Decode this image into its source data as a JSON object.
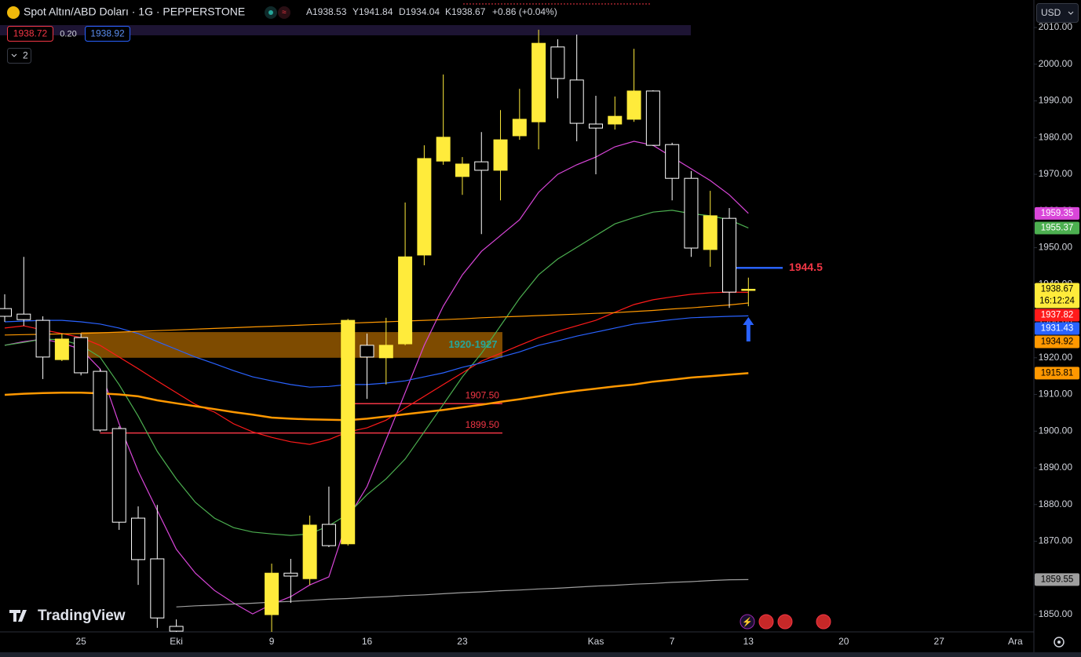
{
  "header": {
    "symbol": "Spot Altın/ABD Doları · 1G · PEPPERSTONE",
    "ohlc": [
      "A1938.53",
      "Y1941.84",
      "D1934.04",
      "K1938.67"
    ],
    "change": "+0.86 (+0.04%)",
    "bid": "1938.72",
    "spread": "0.20",
    "ask": "1938.92",
    "indicators_count": "2",
    "currency": "USD",
    "logo": "TradingView"
  },
  "chart_data": {
    "type": "candlestick",
    "categories": [
      null,
      null,
      null,
      null,
      "25",
      null,
      null,
      null,
      null,
      "Eki",
      null,
      null,
      null,
      null,
      "9",
      null,
      null,
      null,
      null,
      "16",
      null,
      null,
      null,
      null,
      "23",
      null,
      null,
      null,
      null,
      null,
      null,
      "Kas",
      null,
      null,
      null,
      "7",
      null,
      null,
      null,
      "13",
      null,
      null,
      null,
      null,
      "20",
      null,
      null,
      null,
      null,
      "27",
      null,
      null,
      null,
      "Ara"
    ],
    "open": [
      1933.4,
      1931.9,
      1930.2,
      1919.5,
      1925.5,
      1916.3,
      1900.7,
      1876.3,
      1865.2,
      1846.8,
      null,
      null,
      null,
      null,
      1850.0,
      1861.3,
      1859.8,
      1874.6,
      1869.3,
      1923.4,
      1920.0,
      1923.8,
      1948.0,
      1973.6,
      1969.4,
      1973.4,
      1971.1,
      1980.5,
      1984.3,
      2004.7,
      1995.7,
      1983.7,
      1983.7,
      1985.0,
      1992.7,
      1978.1,
      1968.9,
      1949.5,
      1958.0,
      1938.53,
      null,
      null,
      null,
      null,
      null,
      null,
      null,
      null,
      null,
      null,
      null,
      null,
      null,
      null
    ],
    "high": [
      1937.3,
      1947.5,
      1931.3,
      1926.6,
      1926.6,
      1917.0,
      1901.3,
      1879.5,
      1879.9,
      1848.7,
      null,
      null,
      null,
      null,
      1863.9,
      1865.2,
      1877.0,
      1884.9,
      1930.6,
      1926.6,
      1930.9,
      1962.3,
      1977.9,
      1997.2,
      1974.7,
      1981.5,
      1987.5,
      1993.3,
      2009.4,
      2006.8,
      2008.1,
      1991.4,
      1991.2,
      2004.2,
      1992.9,
      1978.6,
      1970.9,
      1965.5,
      1960.8,
      1941.84,
      null,
      null,
      null,
      null,
      null,
      null,
      null,
      null,
      null,
      null,
      null,
      null,
      null,
      null
    ],
    "low": [
      1929.8,
      1928.7,
      1914.2,
      1919.1,
      1915.2,
      1899.8,
      1873.1,
      1858.1,
      1846.4,
      1845.3,
      null,
      null,
      null,
      null,
      1845.3,
      1853.2,
      1858.1,
      1868.4,
      1868.8,
      1908.8,
      1912.7,
      1923.4,
      1945.2,
      1972.6,
      1964.4,
      1953.7,
      1962.9,
      1979.4,
      1976.8,
      1990.7,
      1979.0,
      1970.0,
      1982.2,
      1984.3,
      1977.7,
      1962.9,
      1947.5,
      1944.8,
      1933.6,
      1934.04,
      null,
      null,
      null,
      null,
      null,
      null,
      null,
      null,
      null,
      null,
      null,
      null,
      null,
      null
    ],
    "close": [
      1931.3,
      1930.4,
      1920.2,
      1925.1,
      1915.9,
      1900.3,
      1875.2,
      1865.0,
      1849.1,
      1845.5,
      null,
      null,
      null,
      null,
      1861.3,
      1860.5,
      1874.4,
      1868.8,
      1930.2,
      1920.2,
      1923.4,
      1947.5,
      1974.3,
      1980.1,
      1972.8,
      1971.1,
      1979.4,
      1985.0,
      2005.7,
      1996.1,
      1983.9,
      1982.6,
      1985.8,
      1992.7,
      1977.9,
      1968.9,
      1949.9,
      1958.7,
      1937.9,
      1938.67,
      null,
      null,
      null,
      null,
      null,
      null,
      null,
      null,
      null,
      null,
      null,
      null,
      null,
      null
    ],
    "colors": {
      "up": "#ffeb3b",
      "down": "#000000",
      "down_border": "#ffffff"
    },
    "countdown": "16:12:24",
    "series": [
      {
        "color": "#d946d9",
        "width": 1.2,
        "values": [
          1923.4,
          1924.4,
          1925.1,
          1924.0,
          1922.3,
          1917.0,
          1902.0,
          1889.1,
          1878.4,
          1867.8,
          1861.3,
          1856.6,
          1853.2,
          1850.2,
          1852.8,
          1854.9,
          1858.1,
          1860.3,
          1876.3,
          1884.9,
          1897.7,
          1910.5,
          1923.4,
          1934.1,
          1942.6,
          1949.0,
          1953.3,
          1957.6,
          1965.1,
          1970.0,
          1972.6,
          1974.7,
          1977.5,
          1979.0,
          1977.9,
          1974.7,
          1971.5,
          1968.3,
          1964.4,
          1959.35,
          null,
          null,
          null,
          null,
          null,
          null,
          null,
          null,
          null,
          null,
          null,
          null,
          null,
          null
        ]
      },
      {
        "color": "#4caf50",
        "width": 1.2,
        "values": [
          1923.4,
          1924.2,
          1925.1,
          1924.9,
          1923.4,
          1920.2,
          1912.7,
          1904.1,
          1894.5,
          1887.0,
          1880.6,
          1876.3,
          1873.7,
          1872.5,
          1872.0,
          1871.6,
          1872.0,
          1874.2,
          1877.4,
          1882.7,
          1887.0,
          1892.4,
          1899.8,
          1907.3,
          1914.8,
          1921.2,
          1928.7,
          1936.2,
          1942.6,
          1946.9,
          1950.1,
          1953.3,
          1956.5,
          1958.2,
          1959.7,
          1960.2,
          1959.3,
          1958.7,
          1957.6,
          1955.37,
          null,
          null,
          null,
          null,
          null,
          null,
          null,
          null,
          null,
          null,
          null,
          null,
          null,
          null
        ]
      },
      {
        "color": "#ff1a1a",
        "width": 1.2,
        "values": [
          1928.1,
          1928.7,
          1927.6,
          1926.6,
          1925.5,
          1923.4,
          1920.2,
          1917.0,
          1913.7,
          1910.5,
          1907.3,
          1905.2,
          1902.0,
          1899.8,
          1898.3,
          1897.1,
          1896.4,
          1897.7,
          1899.8,
          1900.9,
          1903.0,
          1906.3,
          1909.5,
          1912.7,
          1915.9,
          1919.1,
          1921.2,
          1923.4,
          1925.5,
          1927.2,
          1928.7,
          1930.2,
          1932.4,
          1934.5,
          1935.8,
          1936.6,
          1937.3,
          1937.7,
          1937.9,
          1937.82,
          null,
          null,
          null,
          null,
          null,
          null,
          null,
          null,
          null,
          null,
          null,
          null,
          null,
          null
        ]
      },
      {
        "color": "#2962ff",
        "width": 1.2,
        "values": [
          1929.8,
          1930.0,
          1930.2,
          1930.2,
          1929.8,
          1929.2,
          1928.1,
          1926.6,
          1924.4,
          1922.3,
          1920.2,
          1918.4,
          1916.5,
          1914.8,
          1913.7,
          1912.7,
          1912.0,
          1912.2,
          1912.7,
          1912.7,
          1913.1,
          1913.7,
          1914.8,
          1915.9,
          1917.4,
          1918.6,
          1920.2,
          1921.6,
          1923.4,
          1924.6,
          1925.9,
          1927.0,
          1928.1,
          1929.2,
          1929.8,
          1930.4,
          1930.9,
          1931.1,
          1931.3,
          1931.43,
          null,
          null,
          null,
          null,
          null,
          null,
          null,
          null,
          null,
          null,
          null,
          null,
          null,
          null
        ]
      },
      {
        "color": "#ff9800",
        "width": 1.2,
        "values": [
          1926.2,
          1926.3,
          1926.4,
          1926.5,
          1926.6,
          1926.8,
          1927.0,
          1927.2,
          1927.4,
          1927.6,
          1927.8,
          1928.0,
          1928.2,
          1928.4,
          1928.6,
          1928.8,
          1929.0,
          1929.2,
          1929.4,
          1929.6,
          1929.8,
          1930.0,
          1930.2,
          1930.4,
          1930.6,
          1930.9,
          1931.1,
          1931.3,
          1931.5,
          1931.7,
          1931.9,
          1932.1,
          1932.3,
          1932.6,
          1932.9,
          1933.3,
          1933.6,
          1934.0,
          1934.4,
          1934.92,
          null,
          null,
          null,
          null,
          null,
          null,
          null,
          null,
          null,
          null,
          null,
          null,
          null,
          null
        ]
      },
      {
        "color": "#ff9800",
        "width": 2.5,
        "values": [
          1909.9,
          1910.2,
          1910.4,
          1910.5,
          1910.5,
          1910.3,
          1910.0,
          1909.5,
          1908.4,
          1907.6,
          1906.8,
          1906.0,
          1905.2,
          1904.5,
          1903.7,
          1903.4,
          1903.2,
          1903.1,
          1903.0,
          1903.4,
          1904.0,
          1904.6,
          1905.2,
          1905.8,
          1906.5,
          1907.2,
          1908.0,
          1908.7,
          1909.5,
          1910.3,
          1911.0,
          1911.6,
          1912.2,
          1912.7,
          1913.5,
          1914.0,
          1914.6,
          1915.0,
          1915.4,
          1915.81,
          null,
          null,
          null,
          null,
          null,
          null,
          null,
          null,
          null,
          null,
          null,
          null,
          null,
          null
        ]
      },
      {
        "color": "#9e9e9e",
        "width": 1.2,
        "values": [
          null,
          null,
          null,
          null,
          null,
          null,
          null,
          null,
          null,
          1852.1,
          1852.4,
          1852.6,
          1852.9,
          1853.1,
          1853.4,
          1853.6,
          1853.9,
          1854.2,
          1854.4,
          1854.7,
          1854.9,
          1855.2,
          1855.4,
          1855.7,
          1856.0,
          1856.2,
          1856.5,
          1856.7,
          1857.0,
          1857.2,
          1857.5,
          1857.8,
          1858.0,
          1858.3,
          1858.5,
          1858.8,
          1859.0,
          1859.3,
          1859.5,
          1859.55,
          null,
          null,
          null,
          null,
          null,
          null,
          null,
          null,
          null,
          null,
          null,
          null,
          null,
          null
        ]
      }
    ],
    "zone": {
      "label": "1920-1927",
      "from": 1920,
      "to": 1927,
      "color": "#a86400",
      "label_color": "#26a69a"
    },
    "hlines": [
      {
        "value": 1907.5,
        "label": "1907.50",
        "color": "#f23645"
      },
      {
        "value": 1899.5,
        "label": "1899.50",
        "color": "#f23645"
      },
      {
        "value": 1944.5,
        "label": "1944.5",
        "color": "#2962ff"
      }
    ],
    "ylim": [
      1845.3,
      2017.5
    ],
    "yticks": [
      {
        "value": 1850,
        "label": "1850.00"
      },
      {
        "value": 1860,
        "label": "1860.00"
      },
      {
        "value": 1870,
        "label": "1870.00"
      },
      {
        "value": 1880,
        "label": "1880.00"
      },
      {
        "value": 1890,
        "label": "1890.00"
      },
      {
        "value": 1900,
        "label": "1900.00"
      },
      {
        "value": 1910,
        "label": "1910.00"
      },
      {
        "value": 1920,
        "label": "1920.00"
      },
      {
        "value": 1930,
        "label": "1930.00"
      },
      {
        "value": 1940,
        "label": "1940.00"
      },
      {
        "value": 1950,
        "label": "1950.00"
      },
      {
        "value": 1960,
        "label": "1960.00"
      },
      {
        "value": 1970,
        "label": "1970.00"
      },
      {
        "value": 1980,
        "label": "1980.00"
      },
      {
        "value": 1990,
        "label": "1990.00"
      },
      {
        "value": 2000,
        "label": "2000.00"
      },
      {
        "value": 2010,
        "label": "2010.00"
      }
    ],
    "grid": false
  }
}
